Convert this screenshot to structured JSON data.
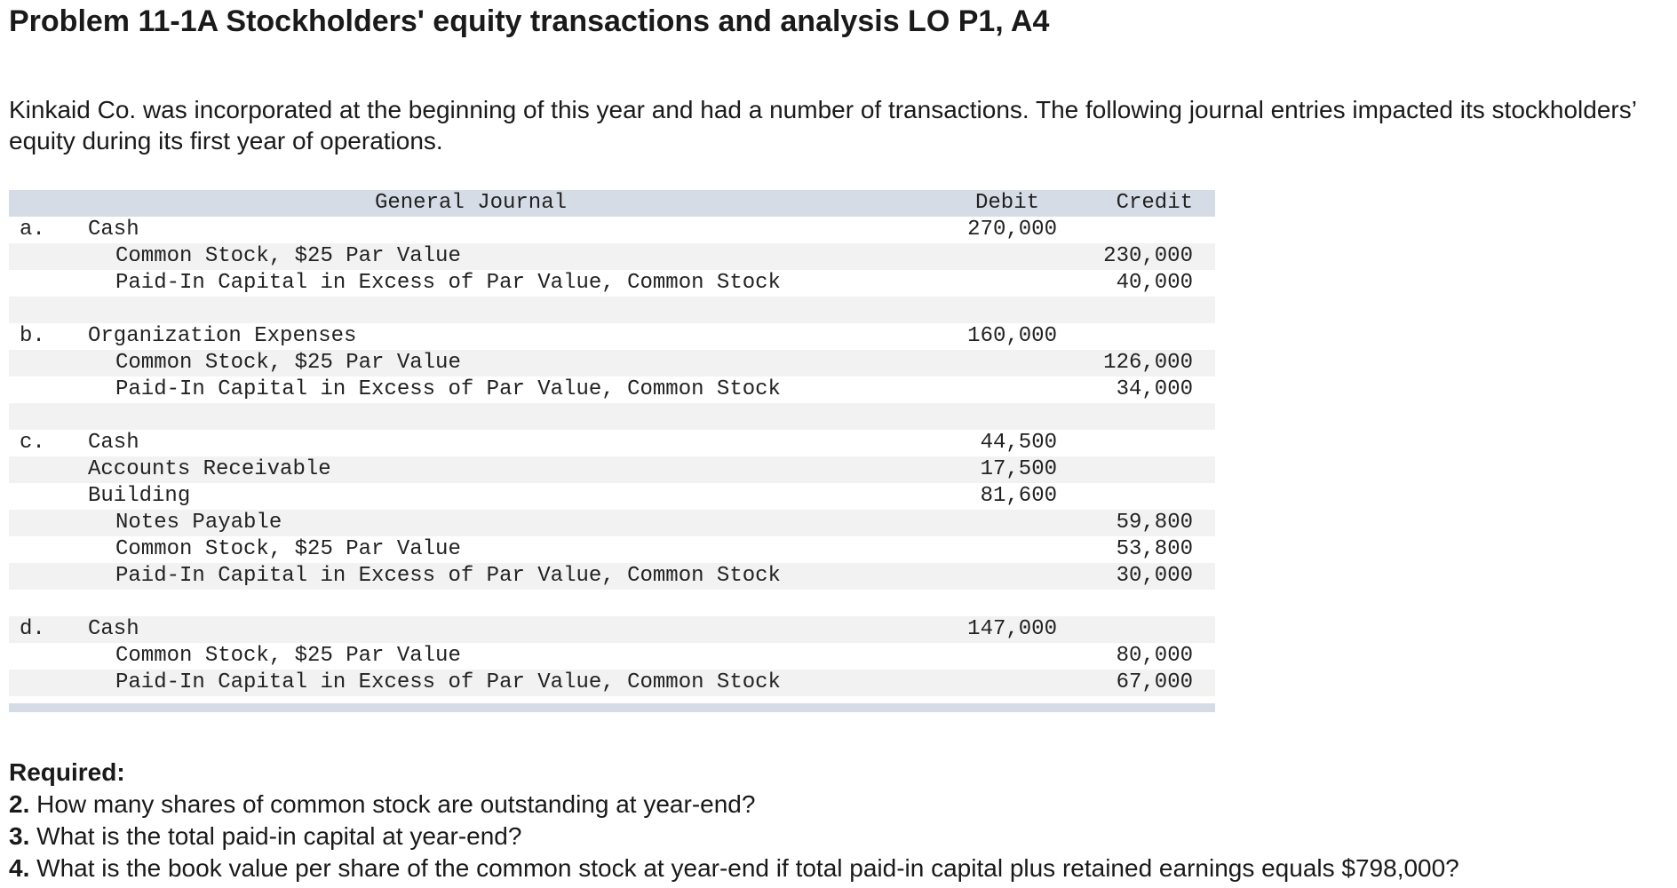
{
  "title": "Problem 11-1A Stockholders' equity transactions and analysis LO P1, A4",
  "intro": "Kinkaid Co. was incorporated at the beginning of this year and had a number of transactions. The following journal entries impacted its stockholders’ equity during its first year of operations.",
  "journal": {
    "header": {
      "title": "General Journal",
      "debit": "Debit",
      "credit": "Credit"
    },
    "rows": [
      {
        "letter": "a.",
        "account": "Cash",
        "indent": false,
        "debit": "270,000",
        "credit": "",
        "shade": false
      },
      {
        "letter": "",
        "account": "Common Stock, $25 Par Value",
        "indent": true,
        "debit": "",
        "credit": "230,000",
        "shade": true
      },
      {
        "letter": "",
        "account": "Paid-In Capital in Excess of Par Value, Common Stock",
        "indent": true,
        "debit": "",
        "credit": "40,000",
        "shade": false
      },
      {
        "letter": "",
        "account": "",
        "indent": false,
        "debit": "",
        "credit": "",
        "shade": true
      },
      {
        "letter": "b.",
        "account": "Organization Expenses",
        "indent": false,
        "debit": "160,000",
        "credit": "",
        "shade": false
      },
      {
        "letter": "",
        "account": "Common Stock, $25 Par Value",
        "indent": true,
        "debit": "",
        "credit": "126,000",
        "shade": true
      },
      {
        "letter": "",
        "account": "Paid-In Capital in Excess of Par Value, Common Stock",
        "indent": true,
        "debit": "",
        "credit": "34,000",
        "shade": false
      },
      {
        "letter": "",
        "account": "",
        "indent": false,
        "debit": "",
        "credit": "",
        "shade": true
      },
      {
        "letter": "c.",
        "account": "Cash",
        "indent": false,
        "debit": "44,500",
        "credit": "",
        "shade": false
      },
      {
        "letter": "",
        "account": "Accounts Receivable",
        "indent": false,
        "debit": "17,500",
        "credit": "",
        "shade": true
      },
      {
        "letter": "",
        "account": "Building",
        "indent": false,
        "debit": "81,600",
        "credit": "",
        "shade": false
      },
      {
        "letter": "",
        "account": "Notes Payable",
        "indent": true,
        "debit": "",
        "credit": "59,800",
        "shade": true
      },
      {
        "letter": "",
        "account": "Common Stock, $25 Par Value",
        "indent": true,
        "debit": "",
        "credit": "53,800",
        "shade": false
      },
      {
        "letter": "",
        "account": "Paid-In Capital in Excess of Par Value, Common Stock",
        "indent": true,
        "debit": "",
        "credit": "30,000",
        "shade": true
      },
      {
        "letter": "",
        "account": "",
        "indent": false,
        "debit": "",
        "credit": "",
        "shade": false
      },
      {
        "letter": "d.",
        "account": "Cash",
        "indent": false,
        "debit": "147,000",
        "credit": "",
        "shade": true
      },
      {
        "letter": "",
        "account": "Common Stock, $25 Par Value",
        "indent": true,
        "debit": "",
        "credit": "80,000",
        "shade": false
      },
      {
        "letter": "",
        "account": "Paid-In Capital in Excess of Par Value, Common Stock",
        "indent": true,
        "debit": "",
        "credit": "67,000",
        "shade": true
      }
    ]
  },
  "required": {
    "heading": "Required:",
    "questions": [
      {
        "num": "2.",
        "text": " How many shares of common stock are outstanding at year-end?"
      },
      {
        "num": "3.",
        "text": " What is the total paid-in capital at year-end?"
      },
      {
        "num": "4.",
        "text": " What is the book value per share of the common stock at year-end if total paid-in capital plus retained earnings equals $798,000?"
      }
    ]
  }
}
